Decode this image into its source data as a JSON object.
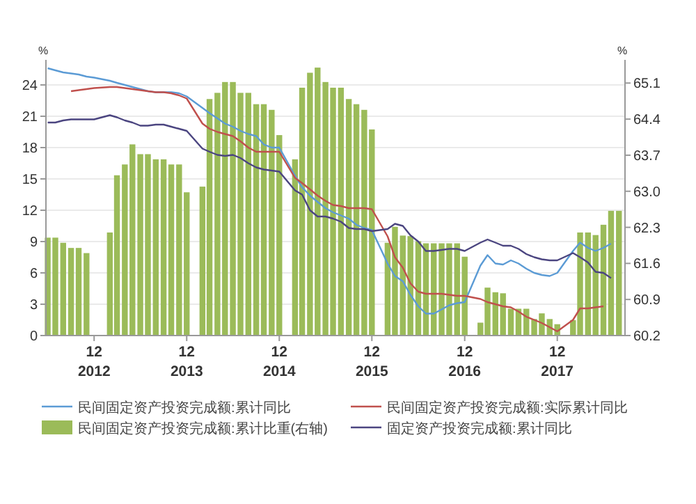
{
  "chart_data": {
    "type": "line",
    "ylabel": "%",
    "y2label": "%",
    "grid": "y",
    "legend": "bottom",
    "x": [
      "2012-06",
      "2012-07",
      "2012-08",
      "2012-09",
      "2012-10",
      "2012-11",
      "2012-12",
      "2013-02",
      "2013-03",
      "2013-04",
      "2013-05",
      "2013-06",
      "2013-07",
      "2013-08",
      "2013-09",
      "2013-10",
      "2013-11",
      "2013-12",
      "2014-02",
      "2014-03",
      "2014-04",
      "2014-05",
      "2014-06",
      "2014-07",
      "2014-08",
      "2014-09",
      "2014-10",
      "2014-11",
      "2014-12",
      "2015-02",
      "2015-03",
      "2015-04",
      "2015-05",
      "2015-06",
      "2015-07",
      "2015-08",
      "2015-09",
      "2015-10",
      "2015-11",
      "2015-12",
      "2016-02",
      "2016-03",
      "2016-04",
      "2016-05",
      "2016-06",
      "2016-07",
      "2016-08",
      "2016-09",
      "2016-10",
      "2016-11",
      "2016-12",
      "2017-02",
      "2017-03",
      "2017-04",
      "2017-05",
      "2017-06",
      "2017-07",
      "2017-08",
      "2017-09",
      "2017-10",
      "2017-11",
      "2017-12",
      "2018-02",
      "2018-03",
      "2018-04",
      "2018-05",
      "2018-06",
      "2018-07",
      "2018-08"
    ],
    "xlim": [
      "2012-05-25",
      "2018-08-25"
    ],
    "xticks": [
      {
        "value": "2012-12",
        "label": "12\n2012"
      },
      {
        "value": "2013-12",
        "label": "12\n2013"
      },
      {
        "value": "2014-12",
        "label": "12\n2014"
      },
      {
        "value": "2015-12",
        "label": "12\n2015"
      },
      {
        "value": "2016-12",
        "label": "12\n2016"
      },
      {
        "value": "2017-12",
        "label": "12\n2017"
      }
    ],
    "ylim": [
      0,
      26.4
    ],
    "yticks": [
      0,
      3,
      6,
      9,
      12,
      15,
      18,
      21,
      24
    ],
    "y2lim": [
      60.2,
      65.55
    ],
    "y2ticks": [
      60.2,
      60.9,
      61.6,
      62.3,
      {
        "value": 63,
        "label": "63.0"
      },
      63.7,
      64.4,
      65.1
    ],
    "series": [
      {
        "name": "民间固定资产投资完成额:累计同比",
        "color": "#5b9bd5",
        "values": [
          25.6,
          25.4,
          25.2,
          25.1,
          25.0,
          24.8,
          24.7,
          24.4,
          24.2,
          24.0,
          23.8,
          23.6,
          23.4,
          23.3,
          23.3,
          23.3,
          23.2,
          22.9,
          21.8,
          21.3,
          20.8,
          20.3,
          20.0,
          19.6,
          19.3,
          19.1,
          18.3,
          18.0,
          18.0,
          15.3,
          14.2,
          13.4,
          12.8,
          12.2,
          11.8,
          11.5,
          11.2,
          10.6,
          10.3,
          10.1,
          6.9,
          5.7,
          5.2,
          3.9,
          2.8,
          2.1,
          2.1,
          2.5,
          2.9,
          3.1,
          3.2,
          6.7,
          7.7,
          6.9,
          6.8,
          7.2,
          6.9,
          6.4,
          6.0,
          5.8,
          5.7,
          6.0,
          8.1,
          8.9,
          8.4,
          8.1,
          8.4,
          8.8,
          null
        ]
      },
      {
        "name": "民间固定资产投资完成额:实际累计同比",
        "color": "#c0504d",
        "values": [
          null,
          null,
          null,
          23.4,
          23.5,
          23.6,
          23.7,
          23.8,
          23.8,
          23.7,
          23.6,
          23.5,
          23.4,
          23.3,
          23.3,
          23.2,
          23.0,
          22.7,
          20.3,
          19.8,
          19.5,
          19.3,
          19.1,
          18.6,
          18.0,
          17.6,
          17.6,
          17.6,
          17.6,
          15.1,
          14.6,
          14.0,
          13.4,
          12.9,
          12.5,
          12.4,
          12.2,
          12.2,
          12.2,
          12.1,
          9.5,
          7.5,
          6.5,
          5.0,
          4.2,
          4.0,
          4.0,
          4.0,
          3.9,
          3.8,
          3.8,
          3.5,
          3.2,
          3.0,
          2.8,
          2.7,
          2.3,
          1.8,
          1.5,
          1.2,
          0.8,
          0.4,
          1.5,
          2.6,
          2.6,
          2.7,
          2.8,
          null,
          null
        ]
      },
      {
        "name": "民间固定资产投资完成额:累计比重(右轴)",
        "type": "bar",
        "axis": "y2",
        "color": "#9bbb59",
        "values": [
          62.1,
          62.1,
          62.0,
          61.9,
          61.9,
          61.8,
          null,
          62.2,
          63.31,
          63.52,
          63.91,
          63.72,
          63.72,
          63.62,
          63.62,
          63.52,
          63.52,
          62.98,
          63.09,
          64.79,
          64.91,
          65.12,
          65.12,
          64.91,
          64.91,
          64.69,
          64.69,
          64.58,
          64.09,
          63.62,
          65.01,
          65.3,
          65.4,
          65.12,
          65.01,
          65.01,
          64.79,
          64.69,
          64.58,
          64.2,
          62.0,
          62.31,
          62.14,
          62.13,
          62.03,
          61.99,
          61.99,
          61.99,
          61.99,
          61.99,
          61.73,
          60.45,
          61.13,
          61.04,
          61.02,
          60.72,
          60.72,
          60.72,
          60.52,
          60.63,
          60.52,
          60.42,
          60.5,
          62.2,
          62.2,
          62.15,
          62.35,
          62.62,
          62.62
        ]
      },
      {
        "name": "固定资产投资完成额:累计同比",
        "color": "#4b4580",
        "values": [
          20.4,
          20.4,
          20.6,
          20.7,
          20.7,
          20.7,
          20.7,
          21.1,
          20.9,
          20.6,
          20.4,
          20.1,
          20.1,
          20.2,
          20.2,
          20.0,
          19.8,
          19.6,
          17.9,
          17.6,
          17.3,
          17.2,
          17.3,
          17.0,
          16.5,
          16.1,
          15.9,
          15.8,
          15.7,
          13.9,
          13.5,
          12.0,
          11.4,
          11.4,
          11.2,
          10.9,
          10.3,
          10.2,
          10.2,
          10.0,
          10.2,
          10.7,
          10.5,
          9.6,
          9.0,
          8.1,
          8.1,
          8.2,
          8.3,
          8.3,
          8.1,
          8.9,
          9.2,
          8.9,
          8.6,
          8.6,
          8.3,
          7.8,
          7.5,
          7.3,
          7.2,
          7.2,
          7.9,
          7.5,
          7.0,
          6.1,
          6.0,
          5.5,
          null
        ]
      }
    ]
  }
}
